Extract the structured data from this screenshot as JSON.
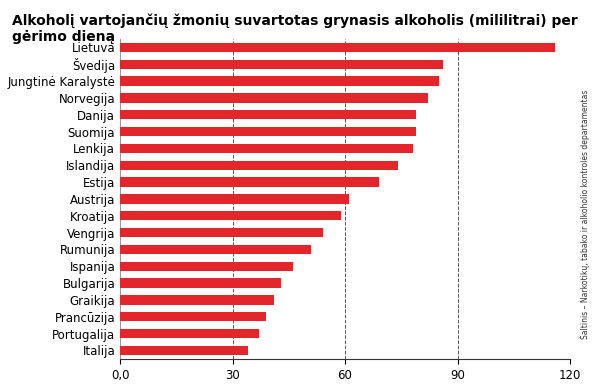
{
  "chart_data": {
    "type": "bar",
    "orientation": "horizontal",
    "title": "Alkoholį vartojančių žmonių suvartotas grynasis alkoholis (mililitrai) per gėrimo dieną",
    "source": "Šaltinis – Narkotikų, tabako ir alkoholio kontrolės departamentas",
    "categories": [
      "Lietuva",
      "Švedija",
      "Jungtinė Karalystė",
      "Norvegija",
      "Danija",
      "Suomija",
      "Lenkija",
      "Islandija",
      "Estija",
      "Austrija",
      "Kroatija",
      "Vengrija",
      "Rumunija",
      "Ispanija",
      "Bulgarija",
      "Graikija",
      "Prancūzija",
      "Portugalija",
      "Italija"
    ],
    "values": [
      116,
      86,
      85,
      82,
      79,
      79,
      78,
      74,
      69,
      61,
      59,
      54,
      51,
      46,
      43,
      41,
      39,
      37,
      34
    ],
    "color": "#e3262b",
    "xlim": [
      0,
      120
    ],
    "xticks": [
      {
        "value": 0,
        "label": "0,0"
      },
      30,
      60,
      90,
      120
    ],
    "grid": true
  }
}
